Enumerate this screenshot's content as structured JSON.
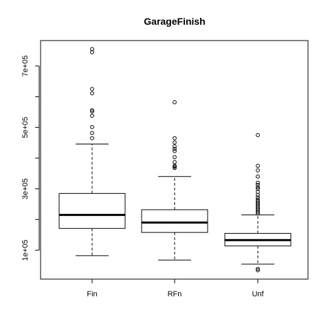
{
  "chart_data": {
    "type": "boxplot",
    "title": "GarageFinish",
    "xlabel": "",
    "ylabel": "",
    "ylim": [
      0,
      850000
    ],
    "y_ticks": [
      100000,
      300000,
      500000,
      700000
    ],
    "y_tick_labels": [
      "1e+05",
      "3e+05",
      "5e+05",
      "7e+05"
    ],
    "grid": false,
    "categories": [
      "Fin",
      "RFn",
      "Unf"
    ],
    "boxes": [
      {
        "name": "Fin",
        "whisker_low": 82500,
        "q1": 171000,
        "median": 215000,
        "q3": 285000,
        "whisker_high": 446000,
        "outliers": [
          465000,
          482000,
          501000,
          538000,
          552000,
          556000,
          611000,
          625000,
          745000,
          755000
        ]
      },
      {
        "name": "RFn",
        "whisker_low": 68000,
        "q1": 158000,
        "median": 190000,
        "q3": 232000,
        "whisker_high": 340000,
        "outliers": [
          368000,
          372000,
          375000,
          387000,
          403000,
          423000,
          430000,
          438000,
          451000,
          465000,
          582000
        ]
      },
      {
        "name": "Unf",
        "whisker_low": 55000,
        "q1": 114000,
        "median": 133000,
        "q3": 155000,
        "whisker_high": 215000,
        "outliers": [
          34900,
          39300,
          220000,
          225000,
          230000,
          235000,
          240000,
          245000,
          250000,
          255000,
          260000,
          265000,
          272000,
          280000,
          290000,
          300000,
          305000,
          313000,
          320000,
          340000,
          360000,
          375000,
          475000
        ]
      }
    ]
  }
}
